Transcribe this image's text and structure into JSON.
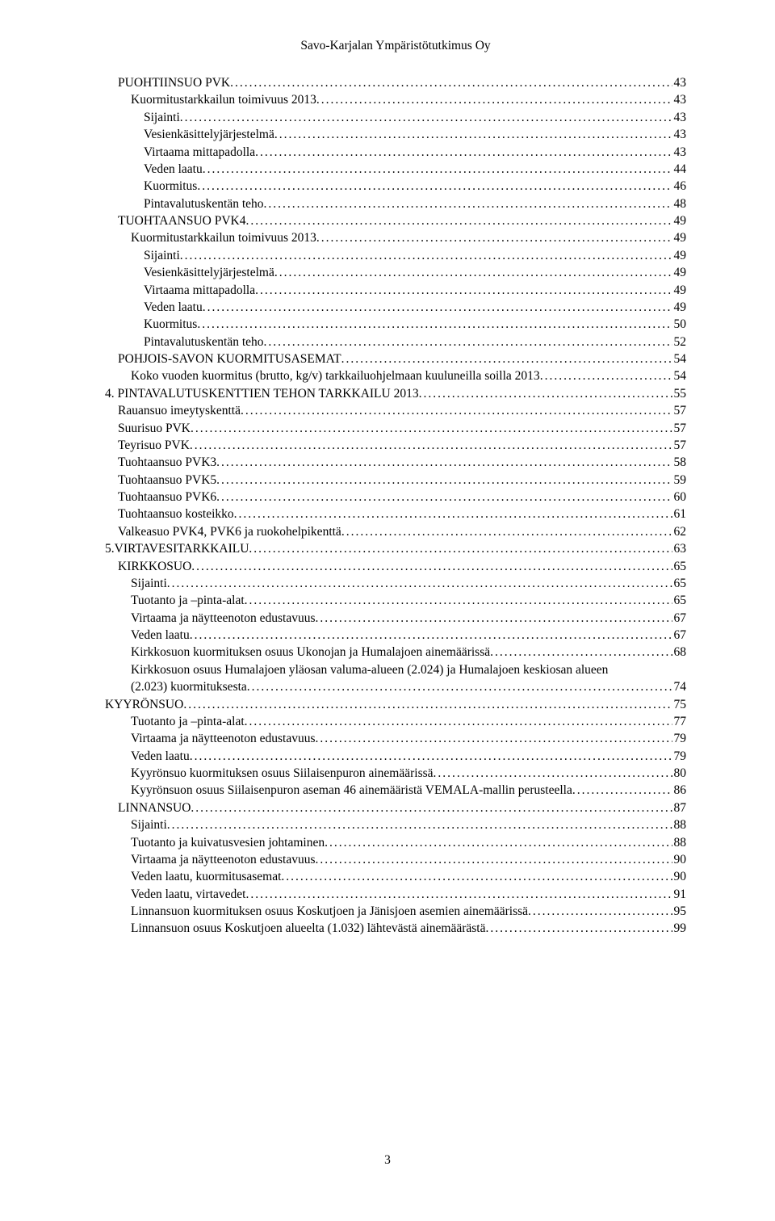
{
  "header": "Savo-Karjalan Ympäristötutkimus Oy",
  "page_number": "3",
  "toc": [
    {
      "lvl": 1,
      "label": "PUOHTIINSUO PVK",
      "page": "43"
    },
    {
      "lvl": 2,
      "label": "Kuormitustarkkailun toimivuus 2013",
      "page": "43"
    },
    {
      "lvl": 3,
      "label": "Sijainti",
      "page": "43"
    },
    {
      "lvl": 3,
      "label": "Vesienkäsittelyjärjestelmä",
      "page": "43"
    },
    {
      "lvl": 3,
      "label": "Virtaama mittapadolla",
      "page": "43"
    },
    {
      "lvl": 3,
      "label": "Veden laatu",
      "page": "44"
    },
    {
      "lvl": 3,
      "label": "Kuormitus",
      "page": "46"
    },
    {
      "lvl": 3,
      "label": "Pintavalutuskentän teho",
      "page": "48"
    },
    {
      "lvl": 1,
      "label": "TUOHTAANSUO PVK4",
      "page": "49"
    },
    {
      "lvl": 2,
      "label": "Kuormitustarkkailun toimivuus 2013",
      "page": "49"
    },
    {
      "lvl": 3,
      "label": "Sijainti",
      "page": "49"
    },
    {
      "lvl": 3,
      "label": "Vesienkäsittelyjärjestelmä",
      "page": "49"
    },
    {
      "lvl": 3,
      "label": "Virtaama mittapadolla",
      "page": "49"
    },
    {
      "lvl": 3,
      "label": "Veden laatu",
      "page": "49"
    },
    {
      "lvl": 3,
      "label": "Kuormitus",
      "page": "50"
    },
    {
      "lvl": 3,
      "label": "Pintavalutuskentän teho",
      "page": "52"
    },
    {
      "lvl": 1,
      "label": "POHJOIS-SAVON KUORMITUSASEMAT",
      "page": "54"
    },
    {
      "lvl": 2,
      "label": "Koko vuoden kuormitus (brutto, kg/v) tarkkailuohjelmaan kuuluneilla soilla 2013",
      "page": "54"
    },
    {
      "lvl": 0,
      "label": "4. PINTAVALUTUSKENTTIEN TEHON TARKKAILU 2013",
      "page": "55"
    },
    {
      "lvl": 1,
      "label": "Rauansuo imeytyskenttä",
      "page": "57"
    },
    {
      "lvl": 1,
      "label": "Suurisuo PVK",
      "page": "57"
    },
    {
      "lvl": 1,
      "label": "Teyrisuo PVK",
      "page": "57"
    },
    {
      "lvl": 1,
      "label": "Tuohtaansuo PVK3",
      "page": "58"
    },
    {
      "lvl": 1,
      "label": "Tuohtaansuo PVK5",
      "page": "59"
    },
    {
      "lvl": 1,
      "label": "Tuohtaansuo PVK6",
      "page": "60"
    },
    {
      "lvl": 1,
      "label": "Tuohtaansuo kosteikko",
      "page": "61"
    },
    {
      "lvl": 1,
      "label": "Valkeasuo PVK4, PVK6 ja ruokohelpikenttä",
      "page": "62"
    },
    {
      "lvl": 0,
      "label": "5.VIRTAVESITARKKAILU",
      "page": "63"
    },
    {
      "lvl": 1,
      "label": "KIRKKOSUO",
      "page": "65"
    },
    {
      "lvl": 2,
      "label": "Sijainti",
      "page": "65"
    },
    {
      "lvl": 2,
      "label": "Tuotanto ja –pinta-alat",
      "page": "65"
    },
    {
      "lvl": 2,
      "label": "Virtaama ja näytteenoton edustavuus",
      "page": "67"
    },
    {
      "lvl": 2,
      "label": "Veden laatu",
      "page": "67"
    },
    {
      "lvl": 2,
      "label": "Kirkkosuon kuormituksen osuus Ukonojan ja Humalajoen ainemäärissä",
      "page": "68"
    },
    {
      "lvl": 2,
      "label": "Kirkkosuon osuus Humalajoen yläosan valuma-alueen (2.024) ja Humalajoen keskiosan alueen (2.023) kuormituksesta",
      "page": "74",
      "wrap": true
    },
    {
      "lvl": 0,
      "label": "KYYRÖNSUO",
      "page": "75"
    },
    {
      "lvl": 2,
      "label": "Tuotanto ja –pinta-alat",
      "page": "77"
    },
    {
      "lvl": 2,
      "label": "Virtaama ja näytteenoton edustavuus",
      "page": "79"
    },
    {
      "lvl": 2,
      "label": "Veden laatu",
      "page": "79"
    },
    {
      "lvl": 2,
      "label": "Kyyrönsuo kuormituksen osuus Siilaisenpuron ainemäärissä",
      "page": "80"
    },
    {
      "lvl": 2,
      "label": "Kyyrönsuon osuus Siilaisenpuron aseman 46 ainemääristä VEMALA-mallin perusteella",
      "page": "86"
    },
    {
      "lvl": 1,
      "label": "LINNANSUO",
      "page": "87"
    },
    {
      "lvl": 2,
      "label": "Sijainti",
      "page": "88"
    },
    {
      "lvl": 2,
      "label": "Tuotanto ja kuivatusvesien johtaminen",
      "page": "88"
    },
    {
      "lvl": 2,
      "label": "Virtaama ja näytteenoton edustavuus",
      "page": "90"
    },
    {
      "lvl": 2,
      "label": "Veden laatu, kuormitusasemat",
      "page": "90"
    },
    {
      "lvl": 2,
      "label": "Veden laatu, virtavedet",
      "page": "91"
    },
    {
      "lvl": 2,
      "label": "Linnansuon kuormituksen osuus Koskutjoen ja Jänisjoen asemien ainemäärissä",
      "page": "95"
    },
    {
      "lvl": 2,
      "label": "Linnansuon osuus Koskutjoen alueelta (1.032) lähtevästä ainemäärästä",
      "page": "99"
    }
  ]
}
